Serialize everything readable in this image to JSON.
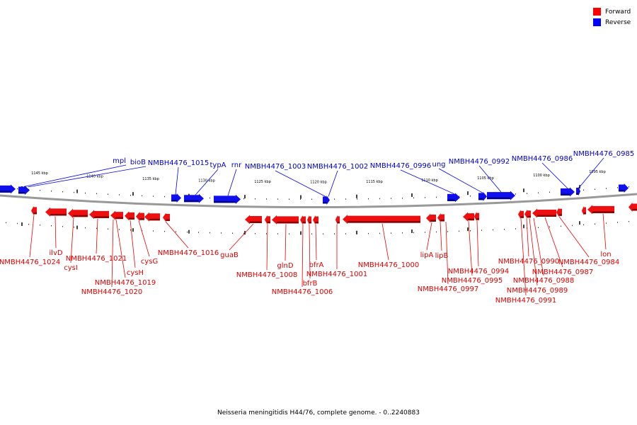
{
  "legend": {
    "forward_label": "Forward",
    "reverse_label": "Reverse",
    "forward_color": "#ff0000",
    "reverse_color": "#0000ff"
  },
  "caption": "Neisseria meningitidis H44/76, complete genome. - 0..2240883",
  "scale": {
    "unit": "kbp",
    "ticks": [
      {
        "label": "1145 kbp"
      },
      {
        "label": "1140 kbp"
      },
      {
        "label": "1135 kbp"
      },
      {
        "label": "1130 kbp"
      },
      {
        "label": "1125 kbp"
      },
      {
        "label": "1120 kbp"
      },
      {
        "label": "1115 kbp"
      },
      {
        "label": "1110 kbp"
      },
      {
        "label": "1105 kbp"
      },
      {
        "label": "1100 kbp"
      },
      {
        "label": "1095 kbp"
      }
    ]
  },
  "reverse_genes": [
    {
      "name": "mpl"
    },
    {
      "name": "bioB"
    },
    {
      "name": "NMBH4476_1015"
    },
    {
      "name": "typA"
    },
    {
      "name": "rnr"
    },
    {
      "name": "NMBH4476_1003"
    },
    {
      "name": "NMBH4476_1002"
    },
    {
      "name": "NMBH4476_0996"
    },
    {
      "name": "ung"
    },
    {
      "name": "NMBH4476_0992"
    },
    {
      "name": "NMBH4476_0986"
    },
    {
      "name": "NMBH4476_0985"
    }
  ],
  "forward_genes": [
    {
      "name": "NMBH4476_1024"
    },
    {
      "name": "ilvD"
    },
    {
      "name": "cysI"
    },
    {
      "name": "NMBH4476_1021"
    },
    {
      "name": "NMBH4476_1020"
    },
    {
      "name": "NMBH4476_1019"
    },
    {
      "name": "cysH"
    },
    {
      "name": "cysG"
    },
    {
      "name": "NMBH4476_1016"
    },
    {
      "name": "guaB"
    },
    {
      "name": "NMBH4476_1008"
    },
    {
      "name": "glnD"
    },
    {
      "name": "NMBH4476_1006"
    },
    {
      "name": "bfrB"
    },
    {
      "name": "bfrA"
    },
    {
      "name": "NMBH4476_1001"
    },
    {
      "name": "NMBH4476_1000"
    },
    {
      "name": "lipA"
    },
    {
      "name": "lipB"
    },
    {
      "name": "NMBH4476_0997"
    },
    {
      "name": "NMBH4476_0995"
    },
    {
      "name": "NMBH4476_0994"
    },
    {
      "name": "NMBH4476_0991"
    },
    {
      "name": "NMBH4476_0990"
    },
    {
      "name": "NMBH4476_0989"
    },
    {
      "name": "NMBH4476_0988"
    },
    {
      "name": "NMBH4476_0987"
    },
    {
      "name": "NMBH4476_0984"
    },
    {
      "name": "lon"
    }
  ]
}
